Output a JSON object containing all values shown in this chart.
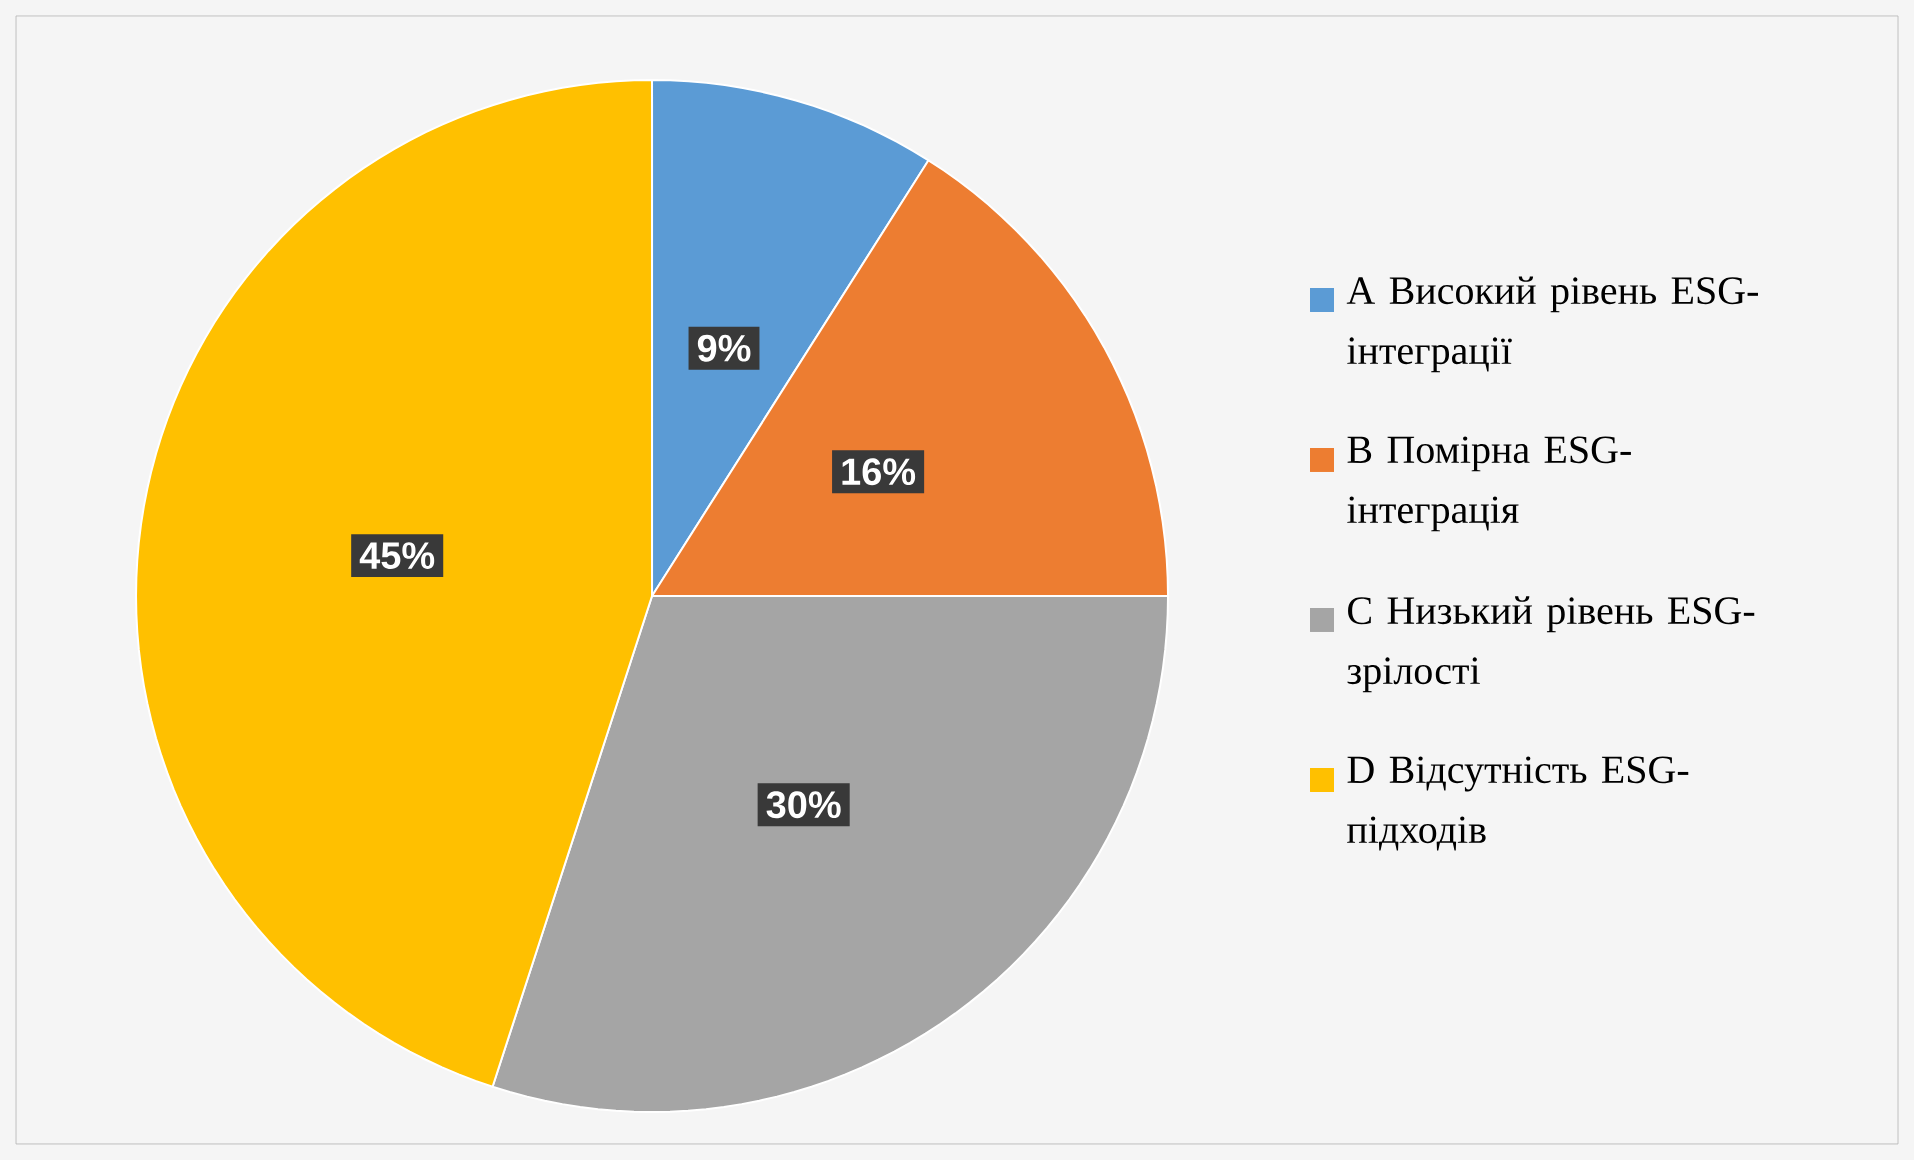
{
  "chart_data": {
    "type": "pie",
    "categories": [
      "A Високий рівень ESG-інтеграції",
      "B Помірна ESG-інтеграція",
      "C Низький рівень ESG-зрілості",
      "D Відсутність ESG-підходів"
    ],
    "values": [
      9,
      16,
      30,
      45
    ],
    "value_labels": [
      "9%",
      "16%",
      "30%",
      "45%"
    ],
    "colors": [
      "#5b9bd5",
      "#ed7d31",
      "#a5a5a5",
      "#ffc000"
    ],
    "legend": "right"
  }
}
